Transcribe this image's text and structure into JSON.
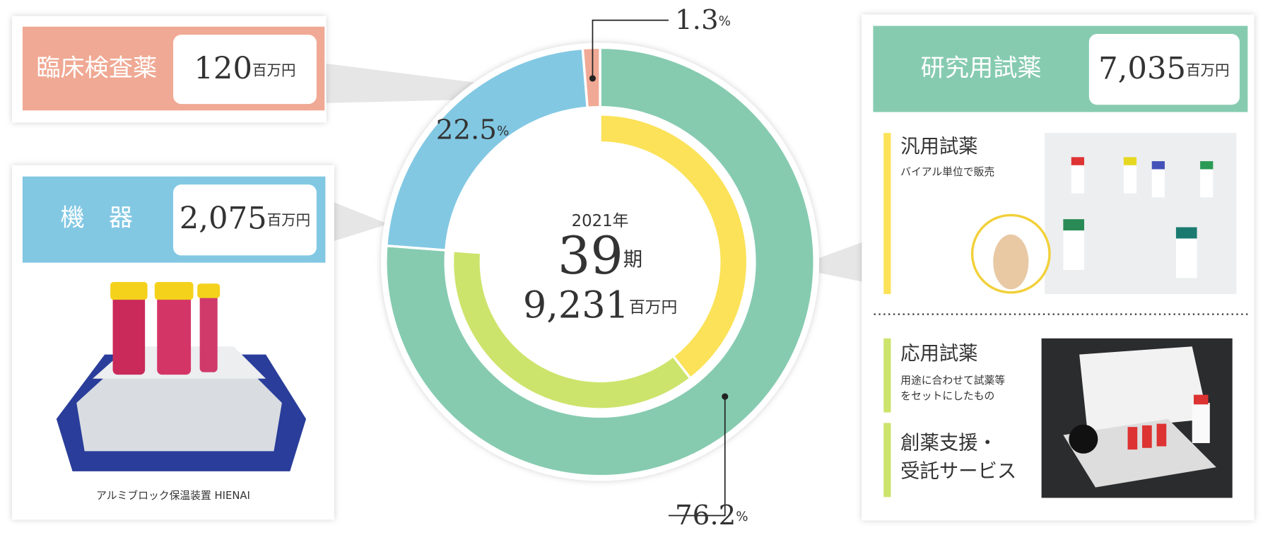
{
  "chart_data": {
    "type": "donut",
    "categories": [
      "研究用試薬",
      "機器",
      "臨床検査薬"
    ],
    "values": [
      76.2,
      22.5,
      1.3
    ],
    "colors": [
      "#86cbb0",
      "#82c8e3",
      "#f0a994"
    ],
    "percent_unit": "%",
    "inner_values": [
      39.5,
      36.7
    ],
    "inner_colors": [
      "#fbe258",
      "#cde46c"
    ],
    "center": {
      "year": "2021年",
      "period": "39",
      "period_unit": "期",
      "total": "9,231",
      "total_unit": "百万円"
    }
  },
  "panels": {
    "clinical": {
      "amount": "120",
      "unit": "百万円"
    },
    "instrument": {
      "title": "機　器",
      "amount": "2,075",
      "unit": "百万円",
      "caption": "アルミブロック保温装置 HIENAI"
    },
    "research": {
      "amount": "7,035",
      "unit": "百万円",
      "items": [
        {
          "title": "汎用試薬",
          "desc": [
            "バイアル単位で販売"
          ]
        },
        {
          "title": "応用試薬",
          "desc": [
            "用途に合わせて試薬等",
            "をセットにしたもの"
          ]
        },
        {
          "title": [
            "創薬支援・",
            "受託サービス"
          ]
        }
      ]
    }
  }
}
